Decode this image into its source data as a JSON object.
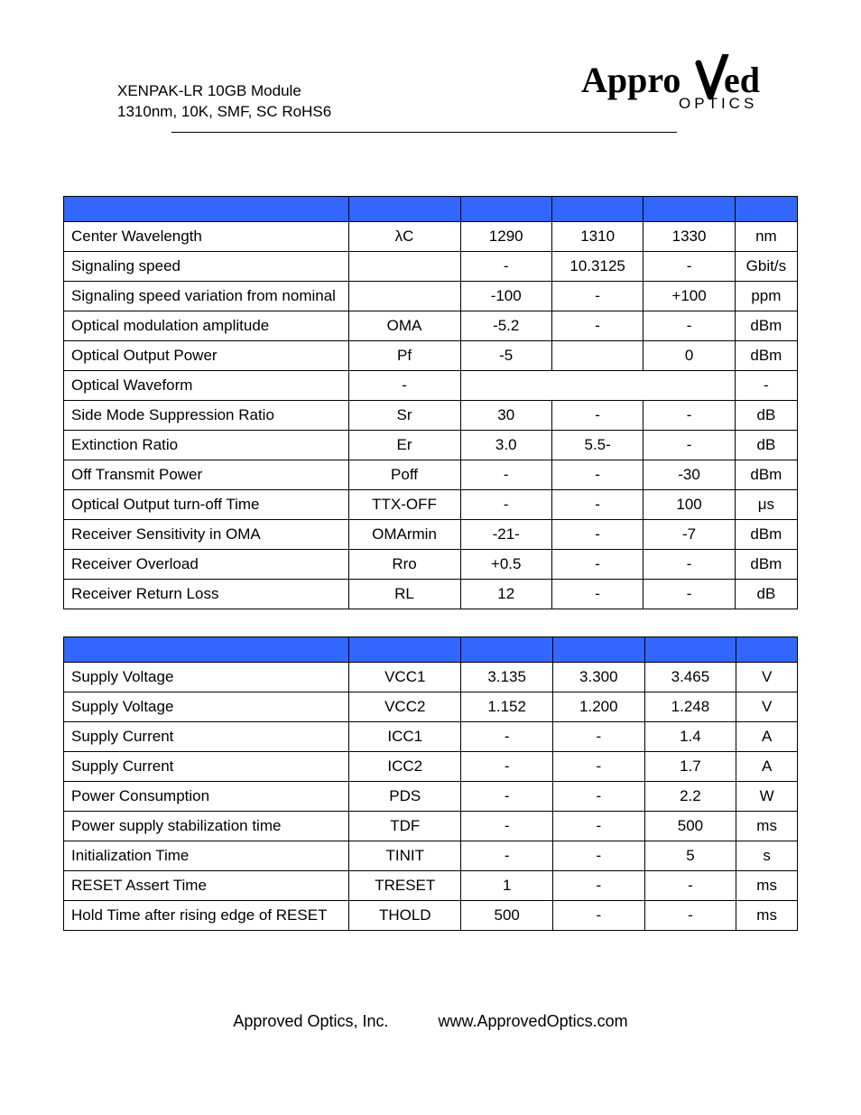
{
  "header": {
    "line1": "XENPAK-LR 10GB Module",
    "line2": "1310nm, 10K, SMF, SC RoHS6",
    "logo_top": "Appro",
    "logo_top2": "ed",
    "logo_bottom": "OPTICS"
  },
  "table1": {
    "header_bg": "#3366ff",
    "rows": [
      {
        "param": "Center Wavelength",
        "sym": "λC",
        "min": "1290",
        "typ": "1310",
        "max": "1330",
        "unit": "nm"
      },
      {
        "param": "Signaling speed",
        "sym": "",
        "min": "-",
        "typ": "10.3125",
        "max": "-",
        "unit": "Gbit/s"
      },
      {
        "param": "Signaling speed variation from nominal",
        "sym": "",
        "min": "-100",
        "typ": "-",
        "max": "+100",
        "unit": "ppm"
      },
      {
        "param": "Optical modulation amplitude",
        "sym": "OMA",
        "min": "-5.2",
        "typ": "-",
        "max": "-",
        "unit": "dBm"
      },
      {
        "param": "Optical Output Power",
        "sym": "Pf",
        "min": "-5",
        "typ": "",
        "max": "0",
        "unit": "dBm"
      },
      {
        "param": "Optical Waveform",
        "sym": "-",
        "merged": "",
        "unit": "-"
      },
      {
        "param": "Side Mode Suppression Ratio",
        "sym": "Sr",
        "min": "30",
        "typ": "-",
        "max": "-",
        "unit": "dB"
      },
      {
        "param": "Extinction Ratio",
        "sym": "Er",
        "min": "3.0",
        "typ": "5.5-",
        "max": "-",
        "unit": "dB"
      },
      {
        "param": "Off Transmit Power",
        "sym": "Poff",
        "min": "-",
        "typ": "-",
        "max": "-30",
        "unit": "dBm"
      },
      {
        "param": "Optical Output turn-off Time",
        "sym": "TTX-OFF",
        "min": "-",
        "typ": "-",
        "max": "100",
        "unit": "μs"
      },
      {
        "param": "Receiver Sensitivity in OMA",
        "sym": "OMArmin",
        "min": "-21-",
        "typ": "-",
        "max": "-7",
        "unit": "dBm"
      },
      {
        "param": "Receiver Overload",
        "sym": "Rro",
        "min": "+0.5",
        "typ": "-",
        "max": "-",
        "unit": "dBm"
      },
      {
        "param": "Receiver Return Loss",
        "sym": "RL",
        "min": "12",
        "typ": "-",
        "max": "-",
        "unit": "dB"
      }
    ]
  },
  "table2": {
    "header_bg": "#3366ff",
    "rows": [
      {
        "param": "Supply Voltage",
        "sym": "VCC1",
        "min": "3.135",
        "typ": "3.300",
        "max": "3.465",
        "unit": "V"
      },
      {
        "param": "Supply Voltage",
        "sym": "VCC2",
        "min": "1.152",
        "typ": "1.200",
        "max": "1.248",
        "unit": "V"
      },
      {
        "param": "Supply Current",
        "sym": "ICC1",
        "min": "-",
        "typ": "-",
        "max": "1.4",
        "unit": "A"
      },
      {
        "param": "Supply Current",
        "sym": "ICC2",
        "min": "-",
        "typ": "-",
        "max": "1.7",
        "unit": "A"
      },
      {
        "param": "Power Consumption",
        "sym": "PDS",
        "min": "-",
        "typ": "-",
        "max": "2.2",
        "unit": "W"
      },
      {
        "param": "Power supply stabilization time",
        "sym": "TDF",
        "min": "-",
        "typ": "-",
        "max": "500",
        "unit": "ms"
      },
      {
        "param": "Initialization Time",
        "sym": "TINIT",
        "min": "-",
        "typ": "-",
        "max": "5",
        "unit": "s"
      },
      {
        "param": "RESET Assert Time",
        "sym": "TRESET",
        "min": "1",
        "typ": "-",
        "max": "-",
        "unit": "ms"
      },
      {
        "param": "Hold Time after rising edge of RESET",
        "sym": "THOLD",
        "min": "500",
        "typ": "-",
        "max": "-",
        "unit": "ms"
      }
    ]
  },
  "footer": {
    "company": "Approved Optics, Inc.",
    "url": "www.ApprovedOptics.com"
  }
}
